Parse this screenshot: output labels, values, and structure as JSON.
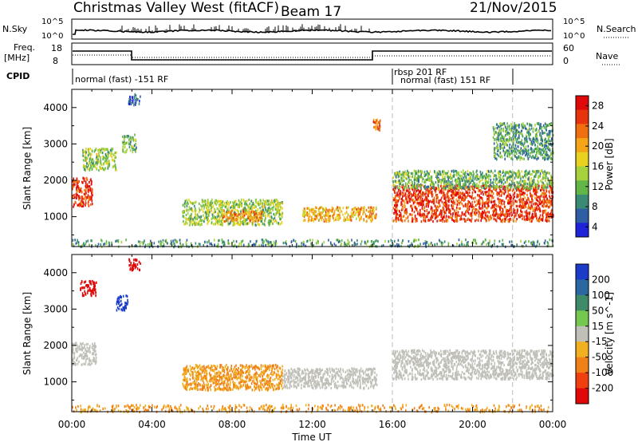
{
  "header": {
    "title": "Christmas Valley West (fitACF)",
    "beam": "Beam 17",
    "date": "21/Nov/2015"
  },
  "strip_labels": {
    "nsky": "N.Sky",
    "freq_line1": "Freq.",
    "freq_line2": "[MHz]",
    "cpid": "CPID",
    "nsearch": "N.Search",
    "nave": "Nave"
  },
  "strip_ticks": {
    "nsky_left": [
      "10^5",
      "10^0"
    ],
    "nsky_right": [
      "10^5",
      "10^0"
    ],
    "freq_left": [
      "18",
      "8"
    ],
    "freq_right": [
      "60",
      "0"
    ]
  },
  "cpid_segments": [
    {
      "label": "normal (fast) -151 RF",
      "start_hour": 0,
      "end_hour": 16
    },
    {
      "label": "rbsp 201 RF",
      "start_hour": 16,
      "end_hour": 22
    },
    {
      "label": "normal (fast) 151 RF",
      "start_hour": 16,
      "end_hour": 22
    }
  ],
  "chart_data": [
    {
      "type": "heatmap",
      "name": "power",
      "ylabel": "Slant Range [km]",
      "xlabel": "Time UT",
      "x_ticks": [
        "00:00",
        "04:00",
        "08:00",
        "12:00",
        "16:00",
        "20:00",
        "00:00"
      ],
      "xlim_hours": [
        0,
        24
      ],
      "y_ticks": [
        1000,
        2000,
        3000,
        4000
      ],
      "ylim_km": [
        180,
        4500
      ],
      "colorbar": {
        "label": "Power [dB]",
        "ticks": [
          4,
          8,
          12,
          16,
          20,
          24,
          28
        ],
        "colors": [
          "#1e22d8",
          "#2e5fa4",
          "#3a8a74",
          "#62b648",
          "#a6d23c",
          "#e8d21e",
          "#f5a617",
          "#f07010",
          "#e8340c",
          "#e00808"
        ]
      },
      "regions": [
        {
          "t0": 0.0,
          "t1": 1.0,
          "r0": 1300,
          "r1": 2100,
          "level": 26
        },
        {
          "t0": 0.5,
          "t1": 2.2,
          "r0": 2300,
          "r1": 2900,
          "level": 14
        },
        {
          "t0": 2.5,
          "t1": 3.2,
          "r0": 2800,
          "r1": 3300,
          "level": 12
        },
        {
          "t0": 2.8,
          "t1": 3.4,
          "r0": 4100,
          "r1": 4400,
          "level": 6
        },
        {
          "t0": 5.5,
          "t1": 10.5,
          "r0": 800,
          "r1": 1500,
          "level": 14
        },
        {
          "t0": 7.5,
          "t1": 9.5,
          "r0": 900,
          "r1": 1200,
          "level": 22
        },
        {
          "t0": 11.5,
          "t1": 15.2,
          "r0": 900,
          "r1": 1300,
          "level": 20
        },
        {
          "t0": 15.0,
          "t1": 15.4,
          "r0": 3400,
          "r1": 3700,
          "level": 24
        },
        {
          "t0": 16.0,
          "t1": 24.0,
          "r0": 900,
          "r1": 1900,
          "level": 26
        },
        {
          "t0": 16.0,
          "t1": 24.0,
          "r0": 1800,
          "r1": 2300,
          "level": 12
        },
        {
          "t0": 21.0,
          "t1": 24.0,
          "r0": 2600,
          "r1": 3600,
          "level": 10
        },
        {
          "t0": 0.0,
          "t1": 24.0,
          "r0": 200,
          "r1": 400,
          "level": 10
        }
      ]
    },
    {
      "type": "heatmap",
      "name": "velocity",
      "ylabel": "Slant Range [km]",
      "xlabel": "Time UT",
      "x_ticks": [
        "00:00",
        "04:00",
        "08:00",
        "12:00",
        "16:00",
        "20:00",
        "00:00"
      ],
      "xlim_hours": [
        0,
        24
      ],
      "y_ticks": [
        1000,
        2000,
        3000,
        4000
      ],
      "ylim_km": [
        180,
        4500
      ],
      "colorbar": {
        "label": "Velocity [m s^-1]",
        "ticks": [
          200,
          100,
          50,
          15,
          -15,
          -50,
          -100,
          -200
        ],
        "colors": [
          "#1a3cc8",
          "#2c68a0",
          "#3f8a68",
          "#74c850",
          "#c0c0b8",
          "#f0b020",
          "#f08018",
          "#f04010",
          "#e00808"
        ]
      },
      "regions": [
        {
          "t0": 0.0,
          "t1": 1.2,
          "r0": 1500,
          "r1": 2100,
          "level": 0
        },
        {
          "t0": 0.4,
          "t1": 1.2,
          "r0": 3400,
          "r1": 3800,
          "level": -200
        },
        {
          "t0": 2.2,
          "t1": 2.8,
          "r0": 3000,
          "r1": 3400,
          "level": 200
        },
        {
          "t0": 2.8,
          "t1": 3.4,
          "r0": 4100,
          "r1": 4400,
          "level": -200
        },
        {
          "t0": 5.5,
          "t1": 10.5,
          "r0": 800,
          "r1": 1500,
          "level": -50
        },
        {
          "t0": 10.5,
          "t1": 15.2,
          "r0": 850,
          "r1": 1400,
          "level": 0
        },
        {
          "t0": 16.0,
          "t1": 24.0,
          "r0": 1100,
          "r1": 1900,
          "level": 0
        },
        {
          "t0": 0.0,
          "t1": 24.0,
          "r0": 200,
          "r1": 400,
          "level": -50
        }
      ]
    }
  ]
}
